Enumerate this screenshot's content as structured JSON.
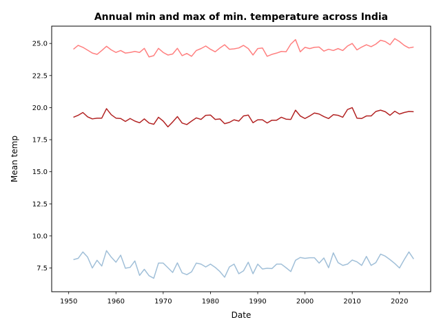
{
  "chart_data": {
    "type": "line",
    "title": "Annual min and max of min. temperature across India",
    "xlabel": "Date",
    "ylabel": "Mean temp",
    "xlim": [
      1946.4,
      2026.6
    ],
    "ylim": [
      5.65,
      26.35
    ],
    "x_ticks": [
      1950,
      1960,
      1970,
      1980,
      1990,
      2000,
      2010,
      2020
    ],
    "y_ticks": [
      7.5,
      10.0,
      12.5,
      15.0,
      17.5,
      20.0,
      22.5,
      25.0
    ],
    "x_tick_labels": [
      "1950",
      "1960",
      "1970",
      "1980",
      "1990",
      "2000",
      "2010",
      "2020"
    ],
    "y_tick_labels": [
      "7.5",
      "10.0",
      "12.5",
      "15.0",
      "17.5",
      "20.0",
      "22.5",
      "25.0"
    ],
    "grid": false,
    "x": [
      1951,
      1952,
      1953,
      1954,
      1955,
      1956,
      1957,
      1958,
      1959,
      1960,
      1961,
      1962,
      1963,
      1964,
      1965,
      1966,
      1967,
      1968,
      1969,
      1970,
      1971,
      1972,
      1973,
      1974,
      1975,
      1976,
      1977,
      1978,
      1979,
      1980,
      1981,
      1982,
      1983,
      1984,
      1985,
      1986,
      1987,
      1988,
      1989,
      1990,
      1991,
      1992,
      1993,
      1994,
      1995,
      1996,
      1997,
      1998,
      1999,
      2000,
      2001,
      2002,
      2003,
      2004,
      2005,
      2006,
      2007,
      2008,
      2009,
      2010,
      2011,
      2012,
      2013,
      2014,
      2015,
      2016,
      2017,
      2018,
      2019,
      2020,
      2021,
      2022,
      2023
    ],
    "series": [
      {
        "color": "#ff7f7f",
        "values": [
          24.55,
          24.85,
          24.7,
          24.48,
          24.25,
          24.15,
          24.45,
          24.78,
          24.5,
          24.3,
          24.45,
          24.25,
          24.3,
          24.38,
          24.3,
          24.62,
          23.95,
          24.05,
          24.62,
          24.3,
          24.1,
          24.18,
          24.62,
          24.05,
          24.22,
          24.0,
          24.45,
          24.6,
          24.8,
          24.55,
          24.35,
          24.65,
          24.9,
          24.55,
          24.58,
          24.65,
          24.85,
          24.6,
          24.1,
          24.6,
          24.65,
          24.0,
          24.15,
          24.25,
          24.38,
          24.35,
          24.95,
          25.3,
          24.35,
          24.7,
          24.6,
          24.7,
          24.72,
          24.4,
          24.55,
          24.45,
          24.6,
          24.45,
          24.8,
          25.0,
          24.5,
          24.72,
          24.9,
          24.75,
          24.95,
          25.25,
          25.15,
          24.9,
          25.38,
          25.15,
          24.85,
          24.65,
          24.72
        ]
      },
      {
        "color": "#b22222",
        "values": [
          19.25,
          19.4,
          19.62,
          19.28,
          19.12,
          19.18,
          19.18,
          19.92,
          19.45,
          19.18,
          19.15,
          18.92,
          19.15,
          18.95,
          18.82,
          19.12,
          18.8,
          18.7,
          19.25,
          18.95,
          18.5,
          18.88,
          19.3,
          18.8,
          18.68,
          18.95,
          19.2,
          19.08,
          19.4,
          19.42,
          19.08,
          19.12,
          18.75,
          18.85,
          19.05,
          18.95,
          19.35,
          19.42,
          18.82,
          19.05,
          19.05,
          18.8,
          19.02,
          19.02,
          19.25,
          19.1,
          19.08,
          19.8,
          19.35,
          19.15,
          19.35,
          19.58,
          19.5,
          19.3,
          19.15,
          19.45,
          19.4,
          19.25,
          19.85,
          20.0,
          19.18,
          19.15,
          19.35,
          19.35,
          19.7,
          19.8,
          19.68,
          19.4,
          19.72,
          19.5,
          19.62,
          19.7,
          19.68
        ]
      },
      {
        "color": "#a0bfd8",
        "values": [
          8.15,
          8.25,
          8.75,
          8.35,
          7.5,
          8.1,
          7.65,
          8.85,
          8.35,
          7.95,
          8.5,
          7.48,
          7.55,
          8.05,
          6.92,
          7.4,
          6.9,
          6.7,
          7.88,
          7.88,
          7.52,
          7.15,
          7.9,
          7.12,
          6.98,
          7.2,
          7.88,
          7.8,
          7.58,
          7.8,
          7.55,
          7.22,
          6.78,
          7.58,
          7.8,
          7.05,
          7.28,
          7.95,
          7.05,
          7.8,
          7.42,
          7.48,
          7.45,
          7.8,
          7.8,
          7.52,
          7.22,
          8.1,
          8.32,
          8.25,
          8.3,
          8.3,
          7.88,
          8.28,
          7.52,
          8.68,
          7.92,
          7.7,
          7.8,
          8.12,
          7.98,
          7.7,
          8.4,
          7.7,
          7.92,
          8.58,
          8.42,
          8.15,
          7.85,
          7.5,
          8.15,
          8.75,
          8.2
        ]
      }
    ]
  }
}
